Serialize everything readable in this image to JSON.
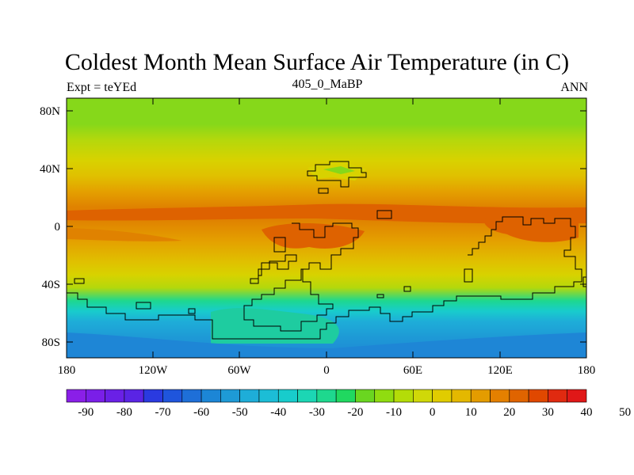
{
  "title": "Coldest Month Mean Surface Air Temperature (in C)",
  "subtitle_left": "Expt = teYEd",
  "subtitle_center": "405_0_MaBP",
  "subtitle_right": "ANN",
  "y_ticks": [
    "80N",
    "40N",
    "0",
    "40S",
    "80S"
  ],
  "x_ticks": [
    "180",
    "120W",
    "60W",
    "0",
    "60E",
    "120E",
    "180"
  ],
  "colorbar_labels": [
    "-90",
    "-80",
    "-70",
    "-60",
    "-50",
    "-40",
    "-30",
    "-20",
    "-10",
    "0",
    "10",
    "20",
    "30",
    "40",
    "50"
  ],
  "colorbar_colors": [
    "#8a1fe8",
    "#7a1fe8",
    "#6a20e6",
    "#5a24e4",
    "#2a3ae0",
    "#1f55dc",
    "#1e6fd8",
    "#1c86d6",
    "#1e9ad6",
    "#1eadd8",
    "#1cbdd6",
    "#18cccc",
    "#1cd6b4",
    "#1ed88e",
    "#20d860",
    "#6ad620",
    "#90dc10",
    "#b4dc08",
    "#d0d808",
    "#e0cc00",
    "#e4b800",
    "#e49c00",
    "#e48000",
    "#e06400",
    "#e04800",
    "#e02a10",
    "#e01818"
  ],
  "band_colors": {
    "lime": "#86d81a",
    "yellowgreen": "#b4d80c",
    "yellow": "#d8d200",
    "gold": "#e0c000",
    "orange": "#e4a000",
    "darkorange": "#e08200",
    "redorange": "#de6200",
    "green": "#1ed88e",
    "teal": "#18cccc",
    "cyan": "#1eadd8",
    "blue": "#1e86d6",
    "deepblue": "#1e6fd8"
  }
}
